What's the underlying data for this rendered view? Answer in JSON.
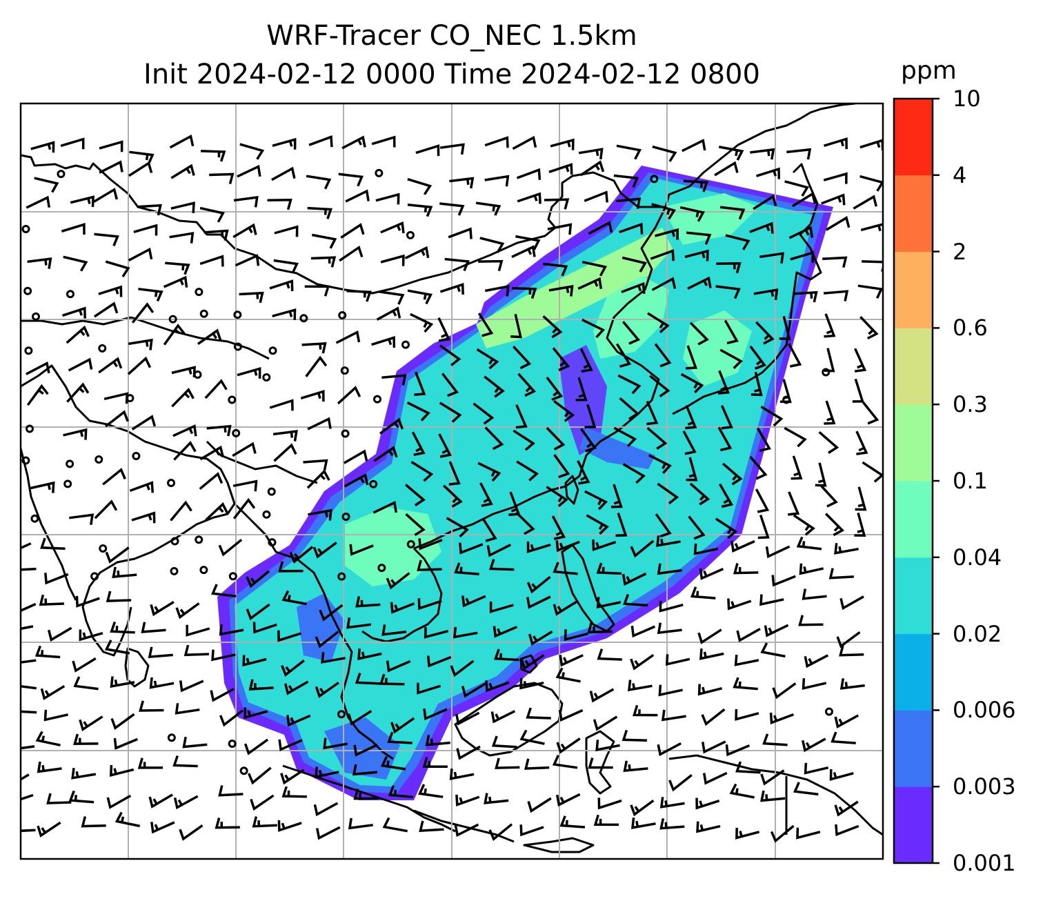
{
  "title": {
    "line1": "WRF-Tracer CO_NEC 1.5km",
    "line2": "Init 2024-02-12 0000 Time 2024-02-12 0800"
  },
  "colorbar": {
    "unit": "ppm",
    "levels": [
      "0.001",
      "0.003",
      "0.006",
      "0.02",
      "0.04",
      "0.1",
      "0.3",
      "0.6",
      "2",
      "4",
      "10"
    ],
    "colors": [
      "#6a2bff",
      "#3a75f5",
      "#0bb0e8",
      "#2fdcd6",
      "#6ffdbd",
      "#9ffa98",
      "#d4e283",
      "#ffb05e",
      "#ff733b",
      "#ff2a14"
    ]
  },
  "map": {
    "field": "CO_NEC tracer concentration with wind barbs",
    "land_outline_color": "#000000",
    "gridline_color": "#b0b0b0",
    "barb_color": "#000000"
  }
}
